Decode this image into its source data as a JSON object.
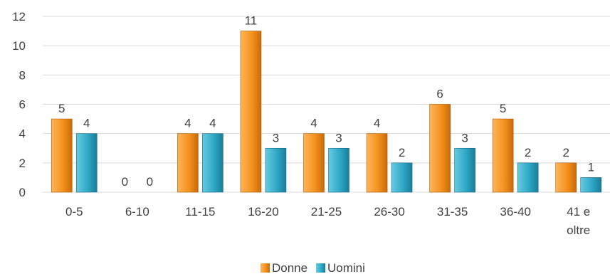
{
  "chart_data": {
    "type": "bar",
    "categories": [
      "0-5",
      "6-10",
      "11-15",
      "16-20",
      "21-25",
      "26-30",
      "31-35",
      "36-40",
      "41 e oltre"
    ],
    "series": [
      {
        "name": "Donne",
        "values": [
          5,
          0,
          4,
          11,
          4,
          4,
          6,
          5,
          2
        ],
        "color": "#F5921E"
      },
      {
        "name": "Uomini",
        "values": [
          4,
          0,
          4,
          3,
          3,
          2,
          3,
          2,
          1
        ],
        "color": "#2FA8C6"
      }
    ],
    "ylim": [
      0,
      12
    ],
    "yticks": [
      0,
      2,
      4,
      6,
      8,
      10,
      12
    ],
    "grid": true,
    "legend": "bottom",
    "data_labels": true,
    "title": "",
    "xlabel": "",
    "ylabel": ""
  }
}
